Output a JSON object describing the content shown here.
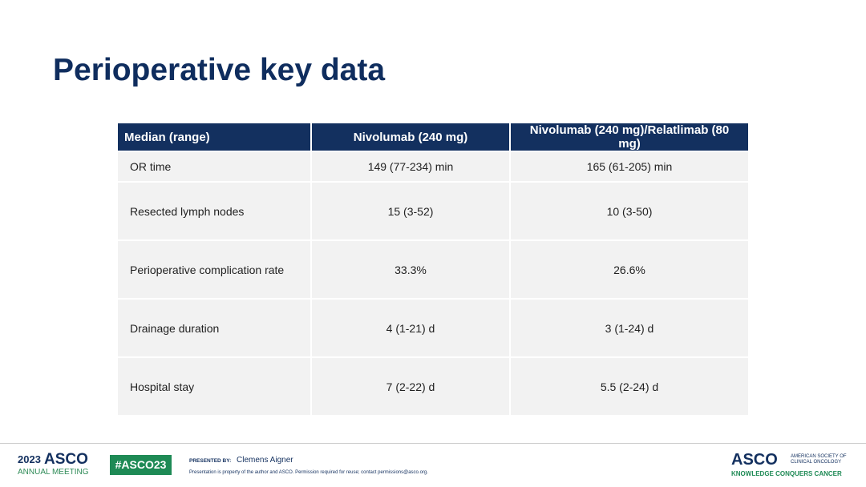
{
  "header": {
    "title": "Perioperative key data"
  },
  "table": {
    "columns": [
      "Median (range)",
      "Nivolumab (240 mg)",
      "Nivolumab (240 mg)/Relatlimab (80 mg)"
    ],
    "rows": [
      [
        "OR time",
        "149 (77-234) min",
        "165 (61-205) min"
      ],
      [
        "Resected lymph nodes",
        "15 (3-52)",
        "10 (3-50)"
      ],
      [
        "Perioperative complication rate",
        "33.3%",
        "26.6%"
      ],
      [
        "Drainage duration",
        "4 (1-21) d",
        "3 (1-24) d"
      ],
      [
        "Hospital stay",
        "7 (2-22) d",
        "5.5 (2-24) d"
      ]
    ]
  },
  "footer": {
    "meeting_year": "2023",
    "meeting_brand": "ASCO",
    "meeting_name": "ANNUAL MEETING",
    "hashtag": "#ASCO23",
    "presented_by_label": "PRESENTED BY:",
    "presenter": "Clemens Aigner",
    "disclaimer": "Presentation is property of the author and ASCO. Permission required for reuse; contact permissions@asco.org.",
    "logo": "ASCO",
    "logo_society": "AMERICAN SOCIETY OF CLINICAL ONCOLOGY",
    "logo_tagline": "KNOWLEDGE CONQUERS CANCER"
  }
}
